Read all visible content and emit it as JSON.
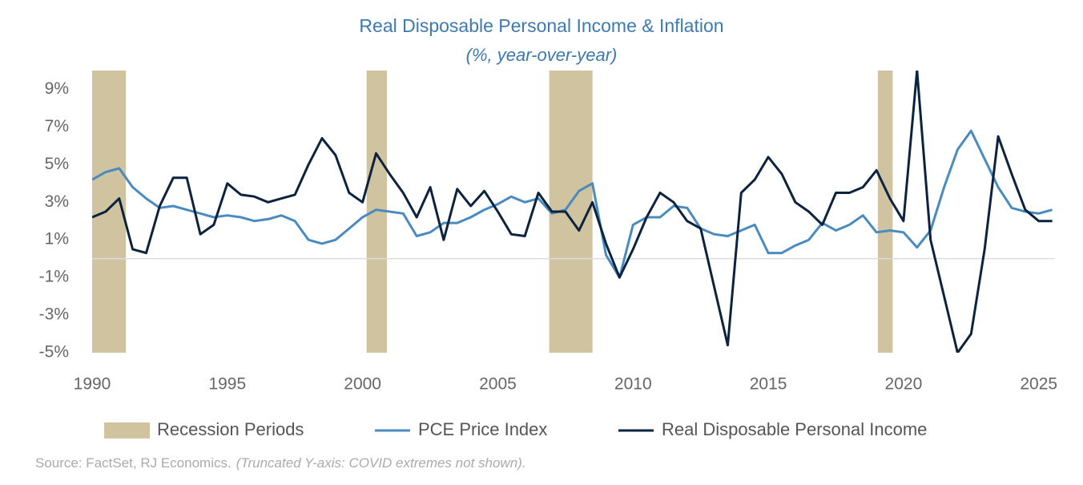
{
  "chart_data": {
    "type": "line",
    "title": "Real Disposable Personal Income & Inflation",
    "subtitle": "(%, year-over-year)",
    "source": "Source: FactSet, RJ Economics.",
    "note": "(Truncated Y-axis: COVID extremes not shown).",
    "xlim": [
      1990,
      2025.6
    ],
    "xticks": [
      1990,
      1995,
      2000,
      2005,
      2010,
      2015,
      2020,
      2025
    ],
    "ylim": [
      -5,
      10
    ],
    "yticks": [
      {
        "value": -5,
        "label": "-5%"
      },
      {
        "value": -3,
        "label": "-3%"
      },
      {
        "value": -1,
        "label": "-1%"
      },
      {
        "value": 1,
        "label": "1%"
      },
      {
        "value": 3,
        "label": "3%"
      },
      {
        "value": 5,
        "label": "5%"
      },
      {
        "value": 7,
        "label": "7%"
      },
      {
        "value": 9,
        "label": "9%"
      }
    ],
    "recessions": {
      "name": "Recession Periods",
      "color": "#cfc3a0",
      "periods": [
        [
          1990,
          1991.25
        ],
        [
          2000.15,
          2000.9
        ],
        [
          2006.9,
          2008.5
        ],
        [
          2019.05,
          2019.6
        ]
      ]
    },
    "x": [
      1990,
      1990.5,
      1991,
      1991.5,
      1992,
      1992.5,
      1993,
      1993.5,
      1994,
      1994.5,
      1995,
      1995.5,
      1996,
      1996.5,
      1997,
      1997.5,
      1998,
      1998.5,
      1999,
      1999.5,
      2000,
      2000.5,
      2001,
      2001.5,
      2002,
      2002.5,
      2003,
      2003.5,
      2004,
      2004.5,
      2005,
      2005.5,
      2006,
      2006.5,
      2007,
      2007.5,
      2008,
      2008.5,
      2009,
      2009.5,
      2010,
      2010.5,
      2011,
      2011.5,
      2012,
      2012.5,
      2013,
      2013.5,
      2014,
      2014.5,
      2015,
      2015.5,
      2016,
      2016.5,
      2017,
      2017.5,
      2018,
      2018.5,
      2019,
      2019.5,
      2020,
      2020.5,
      2021,
      2021.5,
      2022,
      2022.5,
      2023,
      2023.5,
      2024,
      2024.5,
      2025,
      2025.5
    ],
    "series": [
      {
        "name": "PCE Price Index",
        "color": "#4a8bbf",
        "values": [
          4.2,
          4.6,
          4.8,
          3.8,
          3.2,
          2.7,
          2.8,
          2.6,
          2.4,
          2.2,
          2.3,
          2.2,
          2.0,
          2.1,
          2.3,
          2.0,
          1.0,
          0.8,
          1.0,
          1.6,
          2.2,
          2.6,
          2.5,
          2.4,
          1.2,
          1.4,
          1.9,
          1.9,
          2.2,
          2.6,
          2.9,
          3.3,
          3.0,
          3.2,
          2.4,
          2.6,
          3.6,
          4.0,
          0.2,
          -1.0,
          1.8,
          2.2,
          2.2,
          2.8,
          2.7,
          1.6,
          1.3,
          1.2,
          1.5,
          1.8,
          0.3,
          0.3,
          0.7,
          1.0,
          1.9,
          1.5,
          1.8,
          2.3,
          1.4,
          1.5,
          1.4,
          0.6,
          1.5,
          3.8,
          5.8,
          6.8,
          5.3,
          3.8,
          2.7,
          2.5,
          2.4,
          2.6
        ]
      },
      {
        "name": "Real Disposable Personal Income",
        "color": "#0c2340",
        "values": [
          2.2,
          2.5,
          3.2,
          0.5,
          0.3,
          2.8,
          4.3,
          4.3,
          1.3,
          1.8,
          4.0,
          3.4,
          3.3,
          3.0,
          3.2,
          3.4,
          5.0,
          6.4,
          5.5,
          3.5,
          3.0,
          5.6,
          4.5,
          3.5,
          2.2,
          3.8,
          1.0,
          3.7,
          2.8,
          3.6,
          2.5,
          1.3,
          1.2,
          3.5,
          2.5,
          2.5,
          1.5,
          3.0,
          0.8,
          -1.0,
          0.5,
          2.2,
          3.5,
          3.0,
          2.0,
          1.6,
          -1.5,
          -4.6,
          3.5,
          4.2,
          5.4,
          4.5,
          3.0,
          2.5,
          1.8,
          3.5,
          3.5,
          3.8,
          4.7,
          3.2,
          2.0,
          10,
          1.0,
          -2.0,
          -5,
          -4,
          0.5,
          6.5,
          4.5,
          2.6,
          2.0,
          2.0
        ]
      }
    ]
  }
}
